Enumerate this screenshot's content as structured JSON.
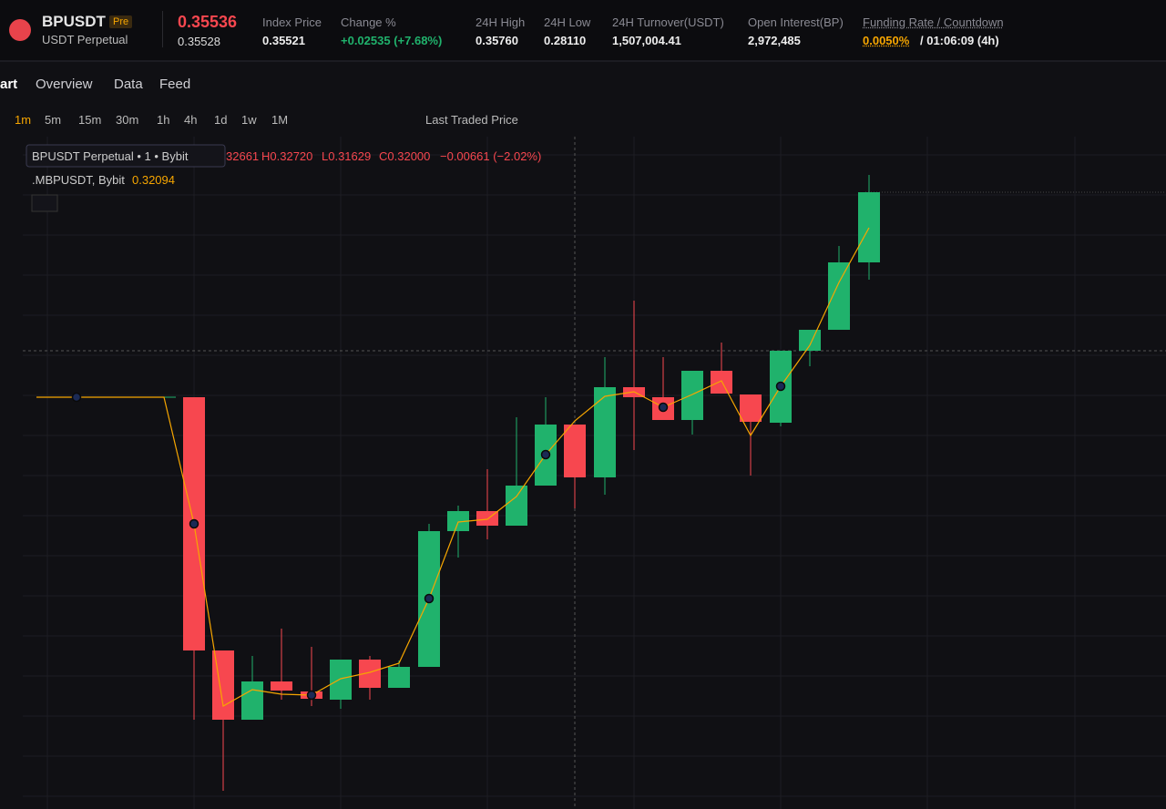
{
  "header": {
    "symbol": "BPUSDT",
    "badge": "Pre",
    "contract": "USDT Perpetual",
    "last_price": "0.35536",
    "mark_price": "0.35528",
    "stats": [
      {
        "label": "Index Price",
        "value": "0.35521"
      },
      {
        "label": "Change %",
        "value": "+0.02535 (+7.68%)"
      },
      {
        "label": "24H High",
        "value": "0.35760"
      },
      {
        "label": "24H Low",
        "value": "0.28110"
      },
      {
        "label": "24H Turnover(USDT)",
        "value": "1,507,004.41"
      },
      {
        "label": "Open Interest(BP)",
        "value": "2,972,485"
      }
    ],
    "funding": {
      "label": "Funding Rate / Countdown",
      "rate": "0.0050%",
      "countdown": "/ 01:06:09 (4h)"
    }
  },
  "tabs": [
    "art",
    "Overview",
    "Data",
    "Feed"
  ],
  "toolbar": {
    "intervals": [
      "1m",
      "5m",
      "15m",
      "30m",
      "1h",
      "4h",
      "1d",
      "1w",
      "1M"
    ],
    "price_source": "Last Traded Price"
  },
  "legend": {
    "title": "BPUSDT Perpetual • 1 • Bybit",
    "open": "32661",
    "high": "H0.32720",
    "low": "L0.31629",
    "close": "C0.32000",
    "change": "−0.00661 (−2.02%)",
    "index_name": ".MBPUSDT, Bybit",
    "index_value": "0.32094"
  }
}
